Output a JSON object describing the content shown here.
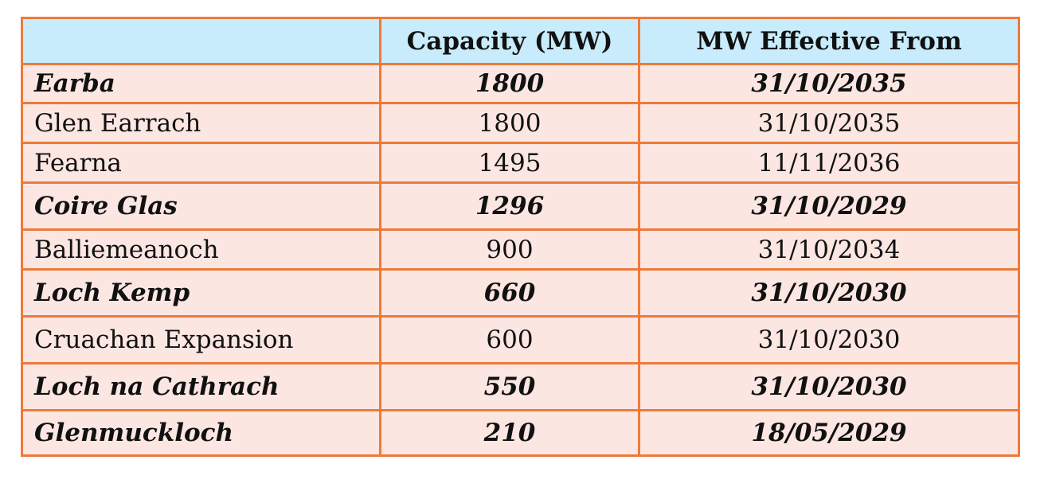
{
  "table": {
    "headers": [
      "",
      "Capacity (MW)",
      "MW Effective From"
    ],
    "rows": [
      {
        "name": "Earba",
        "capacity": "1800",
        "effective_from": "31/10/2035",
        "highlight": true
      },
      {
        "name": "Glen Earrach",
        "capacity": "1800",
        "effective_from": "31/10/2035",
        "highlight": false
      },
      {
        "name": "Fearna",
        "capacity": "1495",
        "effective_from": "11/11/2036",
        "highlight": false
      },
      {
        "name": "Coire Glas",
        "capacity": "1296",
        "effective_from": "31/10/2029",
        "highlight": true
      },
      {
        "name": "Balliemeanoch",
        "capacity": "900",
        "effective_from": "31/10/2034",
        "highlight": false
      },
      {
        "name": "Loch Kemp",
        "capacity": "660",
        "effective_from": "31/10/2030",
        "highlight": true
      },
      {
        "name": "Cruachan Expansion",
        "capacity": "600",
        "effective_from": "31/10/2030",
        "highlight": false
      },
      {
        "name": "Loch na Cathrach",
        "capacity": "550",
        "effective_from": "31/10/2030",
        "highlight": true
      },
      {
        "name": "Glenmuckloch",
        "capacity": "210",
        "effective_from": "18/05/2029",
        "highlight": true
      }
    ]
  },
  "colors": {
    "border": "#ee7a3a",
    "header_bg": "#c8ecfb",
    "row_bg": "#fbe6e2"
  }
}
